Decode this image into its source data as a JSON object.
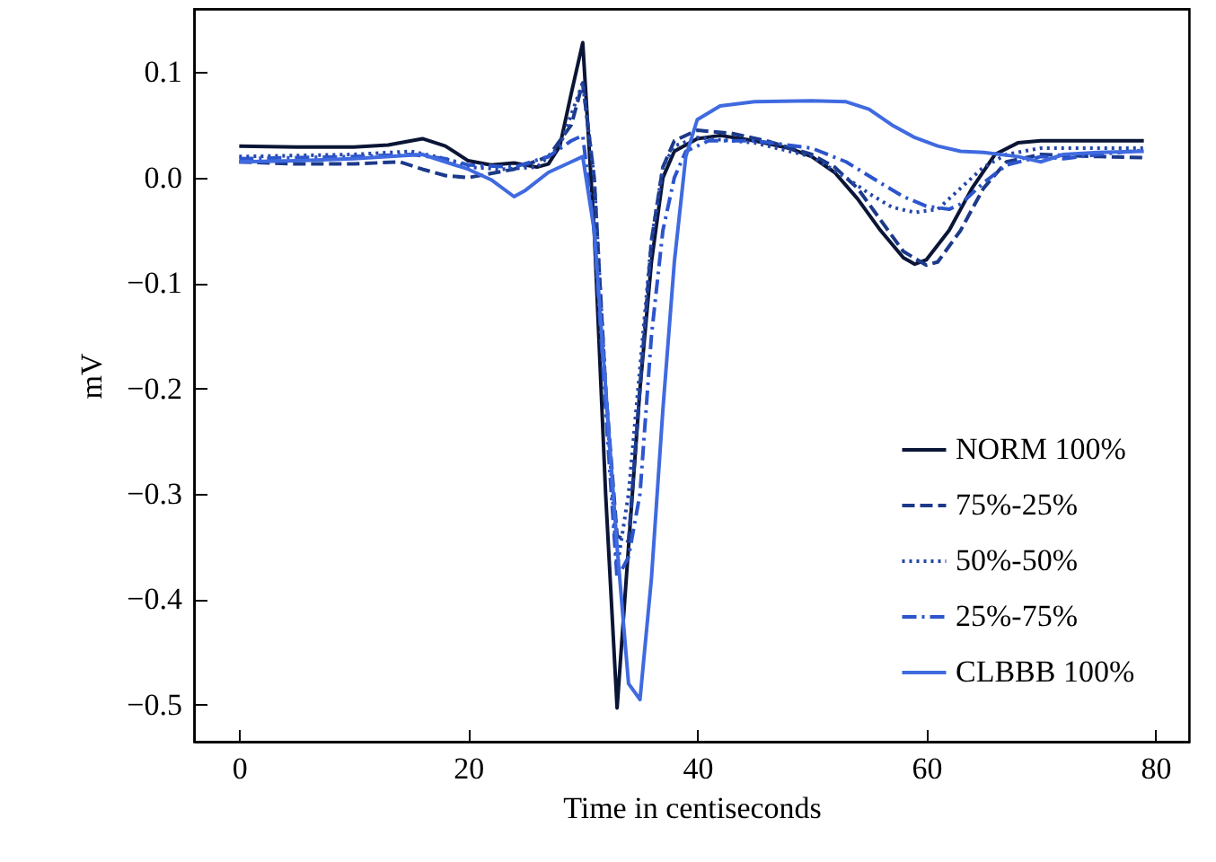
{
  "chart_data": {
    "type": "line",
    "xlabel": "Time in centiseconds",
    "ylabel": "mV",
    "xlim": [
      -3.95,
      82.95
    ],
    "ylim": [
      -0.535,
      0.16
    ],
    "xticks": [
      0,
      20,
      40,
      60,
      80
    ],
    "yticks": [
      {
        "value": -0.5,
        "label": "−0.5"
      },
      {
        "value": -0.4,
        "label": "−0.4"
      },
      {
        "value": -0.3,
        "label": "−0.3"
      },
      {
        "value": -0.2,
        "label": "−0.2"
      },
      {
        "value": -0.1,
        "label": "−0.1"
      },
      {
        "value": 0,
        "label": "0.0"
      },
      {
        "value": 0.1,
        "label": "0.1"
      }
    ],
    "grid": false,
    "legend": "bottom right",
    "marker": "none",
    "series": [
      {
        "name": "NORM 100%",
        "color": "#0b1536",
        "line_style": "solid",
        "x": [
          0,
          5,
          10,
          13,
          16,
          18,
          20,
          22,
          24,
          26,
          27,
          28,
          29,
          30,
          31,
          32,
          33,
          34,
          35,
          36,
          37,
          38,
          40,
          42,
          45,
          48,
          50,
          52,
          54,
          56,
          58,
          59,
          60,
          62,
          64,
          66,
          68,
          70,
          75,
          79
        ],
        "values": [
          0.03,
          0.029,
          0.029,
          0.031,
          0.037,
          0.03,
          0.016,
          0.012,
          0.014,
          0.01,
          0.013,
          0.03,
          0.08,
          0.128,
          -0.05,
          -0.3,
          -0.503,
          -0.35,
          -0.2,
          -0.08,
          0.0,
          0.025,
          0.037,
          0.04,
          0.035,
          0.028,
          0.02,
          0.005,
          -0.02,
          -0.05,
          -0.076,
          -0.082,
          -0.078,
          -0.05,
          -0.01,
          0.022,
          0.033,
          0.035,
          0.035,
          0.035
        ]
      },
      {
        "name": "75%-25%",
        "color": "#1c3a8a",
        "line_style": "dashed",
        "x": [
          0,
          5,
          10,
          14,
          16,
          18,
          20,
          24,
          27,
          29,
          30,
          31,
          32,
          33,
          34,
          35,
          36,
          37,
          38,
          40,
          43,
          46,
          50,
          52,
          54,
          56,
          58,
          60,
          61,
          63,
          65,
          67,
          70,
          75,
          79
        ],
        "values": [
          0.015,
          0.013,
          0.013,
          0.015,
          0.008,
          0.002,
          0.0,
          0.008,
          0.02,
          0.05,
          0.09,
          0.0,
          -0.2,
          -0.34,
          -0.345,
          -0.2,
          -0.06,
          0.01,
          0.035,
          0.045,
          0.042,
          0.035,
          0.022,
          0.01,
          -0.01,
          -0.04,
          -0.07,
          -0.083,
          -0.08,
          -0.05,
          -0.01,
          0.015,
          0.022,
          0.02,
          0.019
        ]
      },
      {
        "name": "50%-50%",
        "color": "#2546a8",
        "line_style": "dotted",
        "x": [
          0,
          5,
          10,
          15,
          18,
          20,
          23,
          26,
          28,
          29,
          30,
          31,
          32,
          33,
          34,
          35,
          36,
          37,
          38,
          40,
          45,
          50,
          53,
          55,
          57,
          59,
          61,
          63,
          65,
          67,
          70,
          75,
          79
        ],
        "values": [
          0.02,
          0.021,
          0.022,
          0.025,
          0.018,
          0.01,
          0.008,
          0.01,
          0.03,
          0.06,
          0.09,
          0.0,
          -0.2,
          -0.37,
          -0.3,
          -0.18,
          -0.06,
          0.01,
          0.03,
          0.038,
          0.033,
          0.02,
          0.0,
          -0.015,
          -0.028,
          -0.033,
          -0.03,
          -0.01,
          0.01,
          0.022,
          0.028,
          0.028,
          0.028
        ]
      },
      {
        "name": "25%-75%",
        "color": "#2c55cc",
        "line_style": "dashdot",
        "x": [
          0,
          5,
          10,
          15,
          18,
          20,
          24,
          27,
          29,
          30,
          31,
          32,
          33,
          34,
          35,
          36,
          37,
          38,
          39,
          41,
          45,
          50,
          53,
          56,
          58,
          60,
          62,
          63,
          65,
          67,
          70,
          72,
          75,
          79
        ],
        "values": [
          0.018,
          0.019,
          0.02,
          0.022,
          0.018,
          0.012,
          0.01,
          0.02,
          0.035,
          0.04,
          -0.05,
          -0.22,
          -0.38,
          -0.36,
          -0.3,
          -0.15,
          -0.05,
          0.0,
          0.025,
          0.035,
          0.035,
          0.028,
          0.015,
          -0.005,
          -0.018,
          -0.027,
          -0.03,
          -0.025,
          -0.005,
          0.012,
          0.02,
          0.018,
          0.022,
          0.026
        ]
      },
      {
        "name": "CLBBB 100%",
        "color": "#3f6ae0",
        "line_style": "solid",
        "x": [
          0,
          5,
          10,
          16,
          18,
          20,
          22,
          24,
          25,
          27,
          29,
          30,
          31,
          32,
          33,
          34,
          35,
          36,
          37,
          38,
          39,
          40,
          42,
          45,
          50,
          53,
          55,
          57,
          59,
          61,
          63,
          65,
          68,
          70,
          72,
          75,
          79
        ],
        "values": [
          0.015,
          0.016,
          0.018,
          0.022,
          0.015,
          0.008,
          -0.002,
          -0.018,
          -0.012,
          0.005,
          0.015,
          0.02,
          -0.05,
          -0.2,
          -0.35,
          -0.48,
          -0.495,
          -0.38,
          -0.22,
          -0.08,
          0.02,
          0.055,
          0.068,
          0.072,
          0.073,
          0.072,
          0.065,
          0.05,
          0.038,
          0.03,
          0.025,
          0.024,
          0.02,
          0.015,
          0.022,
          0.024,
          0.025
        ]
      }
    ]
  }
}
